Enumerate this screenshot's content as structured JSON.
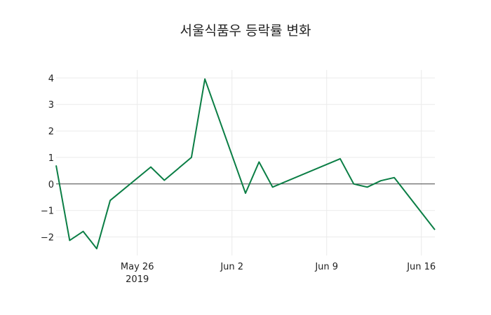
{
  "chart_data": {
    "type": "line",
    "title": "서울식품우 등락률 변화",
    "xlabel": "",
    "ylabel": "",
    "x": [
      "2019-05-20",
      "2019-05-21",
      "2019-05-22",
      "2019-05-23",
      "2019-05-24",
      "2019-05-27",
      "2019-05-28",
      "2019-05-30",
      "2019-05-31",
      "2019-06-03",
      "2019-06-04",
      "2019-06-05",
      "2019-06-10",
      "2019-06-11",
      "2019-06-12",
      "2019-06-13",
      "2019-06-14",
      "2019-06-17"
    ],
    "series": [
      {
        "name": "등락률",
        "color": "#0b7e45",
        "values": [
          0.7,
          -2.13,
          -1.79,
          -2.44,
          -0.62,
          0.64,
          0.14,
          1.0,
          3.96,
          -0.35,
          0.83,
          -0.12,
          0.95,
          0.0,
          -0.12,
          0.12,
          0.24,
          -1.73
        ]
      }
    ],
    "xrange": [
      "2019-05-20",
      "2019-06-17"
    ],
    "ylim": [
      -2.7,
      4.3
    ],
    "yticks": [
      4,
      3,
      2,
      1,
      0,
      -1,
      -2
    ],
    "ytick_labels": [
      "4",
      "3",
      "2",
      "1",
      "0",
      "−1",
      "−2"
    ],
    "xticks": [
      {
        "date": "2019-05-26",
        "label": "May 26",
        "sublabel": "2019"
      },
      {
        "date": "2019-06-02",
        "label": "Jun 2"
      },
      {
        "date": "2019-06-09",
        "label": "Jun 9"
      },
      {
        "date": "2019-06-16",
        "label": "Jun 16"
      }
    ],
    "grid": true,
    "zeroline": true,
    "legend": "none"
  }
}
